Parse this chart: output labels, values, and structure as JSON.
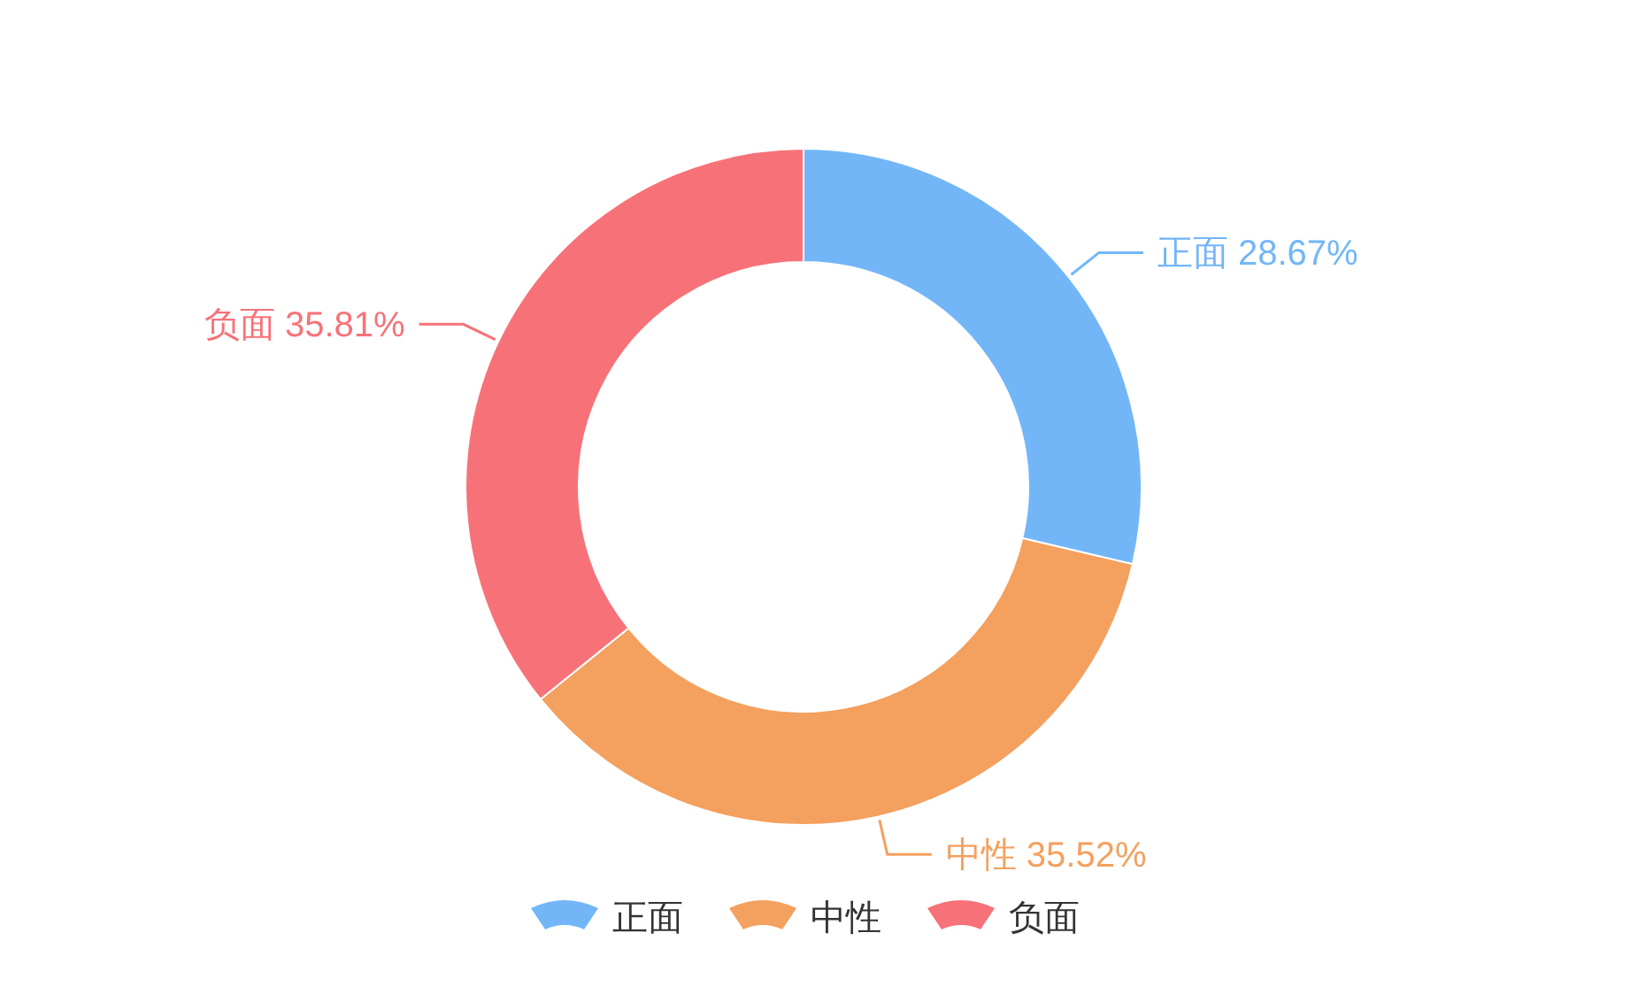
{
  "chart_data": {
    "type": "donut",
    "categories": [
      "正面",
      "中性",
      "负面"
    ],
    "values": [
      28.67,
      35.52,
      35.81
    ],
    "colors": [
      "#73b6f8",
      "#f4a05e",
      "#f77278"
    ],
    "value_labels": [
      "正面 28.67%",
      "中性 35.52%",
      "负面 35.81%"
    ],
    "legend": "bottom"
  }
}
